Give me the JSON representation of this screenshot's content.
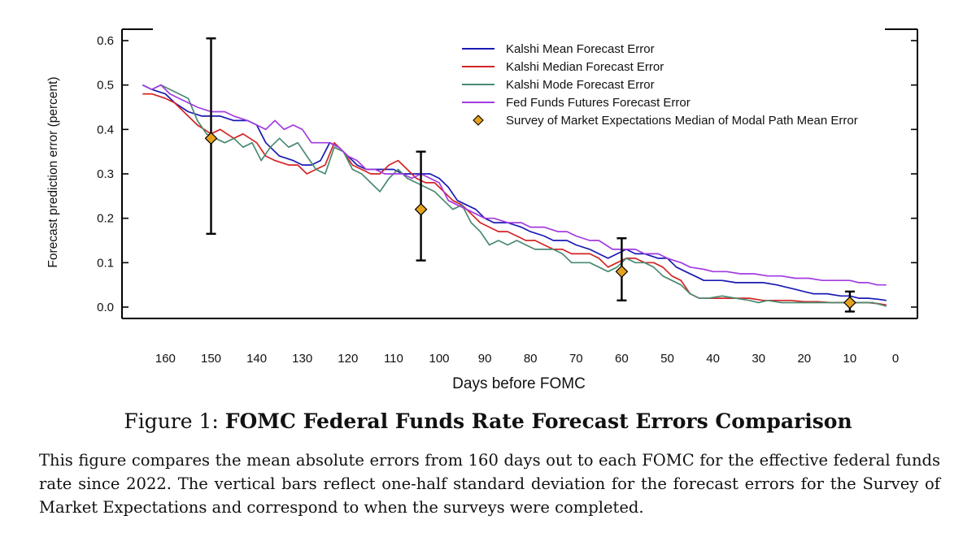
{
  "figure": {
    "label": "Figure 1:",
    "title": "FOMC Federal Funds Rate Forecast Errors Comparison",
    "description": "This figure compares the mean absolute errors from 160 days out to each FOMC for the effective federal funds rate since 2022. The vertical bars reflect one-half standard deviation for the forecast errors for the Survey of Market Expectations and correspond to when the surveys were completed."
  },
  "chart_data": {
    "type": "line",
    "xlabel": "Days before FOMC",
    "ylabel": "Forecast prediction error (percent)",
    "xlim": [
      165,
      0
    ],
    "ylim": [
      0,
      0.6
    ],
    "xticks": [
      "160",
      "150",
      "140",
      "130",
      "120",
      "110",
      "100",
      "90",
      "80",
      "70",
      "60",
      "50",
      "40",
      "30",
      "20",
      "10",
      "0"
    ],
    "yticks": [
      "0.0",
      "0.1",
      "0.2",
      "0.3",
      "0.4",
      "0.5",
      "0.6"
    ],
    "legend_position": "top-right",
    "series": [
      {
        "name": "Kalshi Mean Forecast Error",
        "color": "#1a1ab4",
        "points": [
          [
            165,
            0.5
          ],
          [
            163,
            0.49
          ],
          [
            160,
            0.48
          ],
          [
            158,
            0.46
          ],
          [
            155,
            0.44
          ],
          [
            152,
            0.43
          ],
          [
            150,
            0.43
          ],
          [
            148,
            0.43
          ],
          [
            145,
            0.42
          ],
          [
            142,
            0.42
          ],
          [
            140,
            0.41
          ],
          [
            138,
            0.37
          ],
          [
            135,
            0.34
          ],
          [
            132,
            0.33
          ],
          [
            130,
            0.32
          ],
          [
            128,
            0.32
          ],
          [
            126,
            0.33
          ],
          [
            124,
            0.37
          ],
          [
            122,
            0.36
          ],
          [
            120,
            0.34
          ],
          [
            118,
            0.32
          ],
          [
            116,
            0.31
          ],
          [
            113,
            0.31
          ],
          [
            110,
            0.31
          ],
          [
            108,
            0.3
          ],
          [
            106,
            0.3
          ],
          [
            104,
            0.3
          ],
          [
            102,
            0.3
          ],
          [
            100,
            0.29
          ],
          [
            98,
            0.27
          ],
          [
            96,
            0.24
          ],
          [
            94,
            0.23
          ],
          [
            92,
            0.22
          ],
          [
            90,
            0.2
          ],
          [
            88,
            0.19
          ],
          [
            85,
            0.19
          ],
          [
            82,
            0.18
          ],
          [
            80,
            0.17
          ],
          [
            77,
            0.16
          ],
          [
            75,
            0.15
          ],
          [
            72,
            0.15
          ],
          [
            70,
            0.14
          ],
          [
            67,
            0.13
          ],
          [
            65,
            0.12
          ],
          [
            63,
            0.11
          ],
          [
            61,
            0.12
          ],
          [
            59,
            0.13
          ],
          [
            57,
            0.12
          ],
          [
            55,
            0.12
          ],
          [
            52,
            0.11
          ],
          [
            50,
            0.11
          ],
          [
            48,
            0.09
          ],
          [
            46,
            0.08
          ],
          [
            44,
            0.07
          ],
          [
            42,
            0.06
          ],
          [
            40,
            0.06
          ],
          [
            38,
            0.06
          ],
          [
            35,
            0.055
          ],
          [
            32,
            0.055
          ],
          [
            29,
            0.055
          ],
          [
            26,
            0.05
          ],
          [
            24,
            0.045
          ],
          [
            22,
            0.04
          ],
          [
            20,
            0.035
          ],
          [
            18,
            0.03
          ],
          [
            15,
            0.03
          ],
          [
            12,
            0.025
          ],
          [
            10,
            0.025
          ],
          [
            8,
            0.02
          ],
          [
            6,
            0.02
          ],
          [
            4,
            0.018
          ],
          [
            2,
            0.015
          ]
        ]
      },
      {
        "name": "Kalshi Median Forecast Error",
        "color": "#d42424",
        "points": [
          [
            165,
            0.48
          ],
          [
            163,
            0.48
          ],
          [
            160,
            0.47
          ],
          [
            158,
            0.46
          ],
          [
            155,
            0.43
          ],
          [
            153,
            0.41
          ],
          [
            150,
            0.39
          ],
          [
            148,
            0.4
          ],
          [
            145,
            0.38
          ],
          [
            143,
            0.39
          ],
          [
            140,
            0.37
          ],
          [
            138,
            0.34
          ],
          [
            136,
            0.33
          ],
          [
            133,
            0.32
          ],
          [
            131,
            0.32
          ],
          [
            129,
            0.3
          ],
          [
            127,
            0.31
          ],
          [
            125,
            0.32
          ],
          [
            123,
            0.37
          ],
          [
            121,
            0.35
          ],
          [
            119,
            0.32
          ],
          [
            117,
            0.31
          ],
          [
            115,
            0.3
          ],
          [
            113,
            0.3
          ],
          [
            111,
            0.32
          ],
          [
            109,
            0.33
          ],
          [
            107,
            0.31
          ],
          [
            105,
            0.29
          ],
          [
            103,
            0.28
          ],
          [
            101,
            0.28
          ],
          [
            99,
            0.26
          ],
          [
            97,
            0.24
          ],
          [
            95,
            0.23
          ],
          [
            93,
            0.21
          ],
          [
            91,
            0.19
          ],
          [
            89,
            0.18
          ],
          [
            87,
            0.17
          ],
          [
            85,
            0.17
          ],
          [
            83,
            0.16
          ],
          [
            81,
            0.15
          ],
          [
            79,
            0.15
          ],
          [
            77,
            0.14
          ],
          [
            75,
            0.13
          ],
          [
            73,
            0.13
          ],
          [
            71,
            0.12
          ],
          [
            69,
            0.12
          ],
          [
            67,
            0.12
          ],
          [
            65,
            0.11
          ],
          [
            63,
            0.09
          ],
          [
            61,
            0.1
          ],
          [
            59,
            0.11
          ],
          [
            57,
            0.11
          ],
          [
            55,
            0.1
          ],
          [
            53,
            0.1
          ],
          [
            51,
            0.09
          ],
          [
            49,
            0.07
          ],
          [
            47,
            0.06
          ],
          [
            45,
            0.03
          ],
          [
            43,
            0.02
          ],
          [
            41,
            0.02
          ],
          [
            38,
            0.02
          ],
          [
            35,
            0.02
          ],
          [
            32,
            0.02
          ],
          [
            29,
            0.015
          ],
          [
            26,
            0.015
          ],
          [
            23,
            0.015
          ],
          [
            20,
            0.012
          ],
          [
            17,
            0.012
          ],
          [
            14,
            0.01
          ],
          [
            12,
            0.01
          ],
          [
            10,
            0.01
          ],
          [
            8,
            0.01
          ],
          [
            6,
            0.01
          ],
          [
            4,
            0.008
          ],
          [
            2,
            0.005
          ]
        ]
      },
      {
        "name": "Kalshi Mode Forecast Error",
        "color": "#4a8a72",
        "points": [
          [
            165,
            0.5
          ],
          [
            163,
            0.49
          ],
          [
            161,
            0.5
          ],
          [
            159,
            0.49
          ],
          [
            157,
            0.48
          ],
          [
            155,
            0.47
          ],
          [
            153,
            0.42
          ],
          [
            151,
            0.39
          ],
          [
            149,
            0.38
          ],
          [
            147,
            0.37
          ],
          [
            145,
            0.38
          ],
          [
            143,
            0.36
          ],
          [
            141,
            0.37
          ],
          [
            139,
            0.33
          ],
          [
            137,
            0.36
          ],
          [
            135,
            0.38
          ],
          [
            133,
            0.36
          ],
          [
            131,
            0.37
          ],
          [
            129,
            0.34
          ],
          [
            127,
            0.31
          ],
          [
            125,
            0.3
          ],
          [
            123,
            0.36
          ],
          [
            121,
            0.35
          ],
          [
            119,
            0.31
          ],
          [
            117,
            0.3
          ],
          [
            115,
            0.28
          ],
          [
            113,
            0.26
          ],
          [
            111,
            0.29
          ],
          [
            109,
            0.31
          ],
          [
            107,
            0.29
          ],
          [
            105,
            0.28
          ],
          [
            103,
            0.27
          ],
          [
            101,
            0.26
          ],
          [
            99,
            0.24
          ],
          [
            97,
            0.22
          ],
          [
            95,
            0.23
          ],
          [
            93,
            0.19
          ],
          [
            91,
            0.17
          ],
          [
            89,
            0.14
          ],
          [
            87,
            0.15
          ],
          [
            85,
            0.14
          ],
          [
            83,
            0.15
          ],
          [
            81,
            0.14
          ],
          [
            79,
            0.13
          ],
          [
            77,
            0.13
          ],
          [
            75,
            0.13
          ],
          [
            73,
            0.12
          ],
          [
            71,
            0.1
          ],
          [
            69,
            0.1
          ],
          [
            67,
            0.1
          ],
          [
            65,
            0.09
          ],
          [
            63,
            0.08
          ],
          [
            61,
            0.09
          ],
          [
            59,
            0.11
          ],
          [
            57,
            0.1
          ],
          [
            55,
            0.1
          ],
          [
            53,
            0.09
          ],
          [
            51,
            0.07
          ],
          [
            49,
            0.06
          ],
          [
            47,
            0.05
          ],
          [
            45,
            0.03
          ],
          [
            43,
            0.02
          ],
          [
            41,
            0.02
          ],
          [
            38,
            0.025
          ],
          [
            35,
            0.02
          ],
          [
            32,
            0.015
          ],
          [
            30,
            0.01
          ],
          [
            28,
            0.015
          ],
          [
            25,
            0.01
          ],
          [
            22,
            0.01
          ],
          [
            20,
            0.01
          ],
          [
            17,
            0.01
          ],
          [
            14,
            0.01
          ],
          [
            12,
            0.01
          ],
          [
            10,
            0.01
          ],
          [
            8,
            0.01
          ],
          [
            5,
            0.01
          ],
          [
            3,
            0.005
          ],
          [
            2,
            0.002
          ]
        ]
      },
      {
        "name": "Fed Funds Futures Forecast Error",
        "color": "#a23be0",
        "points": [
          [
            165,
            0.5
          ],
          [
            163,
            0.49
          ],
          [
            161,
            0.5
          ],
          [
            159,
            0.48
          ],
          [
            157,
            0.47
          ],
          [
            155,
            0.46
          ],
          [
            153,
            0.45
          ],
          [
            150,
            0.44
          ],
          [
            147,
            0.44
          ],
          [
            145,
            0.43
          ],
          [
            142,
            0.42
          ],
          [
            140,
            0.41
          ],
          [
            138,
            0.4
          ],
          [
            136,
            0.42
          ],
          [
            134,
            0.4
          ],
          [
            132,
            0.41
          ],
          [
            130,
            0.4
          ],
          [
            128,
            0.37
          ],
          [
            126,
            0.37
          ],
          [
            124,
            0.37
          ],
          [
            122,
            0.36
          ],
          [
            120,
            0.34
          ],
          [
            118,
            0.33
          ],
          [
            116,
            0.31
          ],
          [
            114,
            0.31
          ],
          [
            112,
            0.3
          ],
          [
            110,
            0.3
          ],
          [
            108,
            0.3
          ],
          [
            106,
            0.29
          ],
          [
            104,
            0.3
          ],
          [
            102,
            0.29
          ],
          [
            100,
            0.28
          ],
          [
            98,
            0.24
          ],
          [
            96,
            0.23
          ],
          [
            94,
            0.22
          ],
          [
            92,
            0.21
          ],
          [
            90,
            0.2
          ],
          [
            88,
            0.2
          ],
          [
            85,
            0.19
          ],
          [
            82,
            0.19
          ],
          [
            80,
            0.18
          ],
          [
            77,
            0.18
          ],
          [
            74,
            0.17
          ],
          [
            72,
            0.17
          ],
          [
            70,
            0.16
          ],
          [
            67,
            0.15
          ],
          [
            65,
            0.15
          ],
          [
            62,
            0.13
          ],
          [
            60,
            0.13
          ],
          [
            57,
            0.13
          ],
          [
            55,
            0.12
          ],
          [
            52,
            0.12
          ],
          [
            50,
            0.11
          ],
          [
            47,
            0.1
          ],
          [
            45,
            0.09
          ],
          [
            42,
            0.085
          ],
          [
            40,
            0.08
          ],
          [
            37,
            0.08
          ],
          [
            34,
            0.075
          ],
          [
            31,
            0.075
          ],
          [
            28,
            0.07
          ],
          [
            25,
            0.07
          ],
          [
            22,
            0.065
          ],
          [
            19,
            0.065
          ],
          [
            16,
            0.06
          ],
          [
            13,
            0.06
          ],
          [
            10,
            0.06
          ],
          [
            8,
            0.055
          ],
          [
            6,
            0.055
          ],
          [
            4,
            0.05
          ],
          [
            2,
            0.05
          ]
        ]
      },
      {
        "name": "Survey of Market Expectations Median of Modal Path Mean Error",
        "color": "#e6a21c",
        "marker": "diamond",
        "points": [
          [
            150,
            0.38
          ],
          [
            104,
            0.22
          ],
          [
            60,
            0.08
          ],
          [
            10,
            0.01
          ]
        ],
        "error_bars": [
          [
            0.165,
            0.605
          ],
          [
            0.105,
            0.35
          ],
          [
            0.015,
            0.155
          ],
          [
            -0.01,
            0.035
          ]
        ]
      }
    ]
  }
}
